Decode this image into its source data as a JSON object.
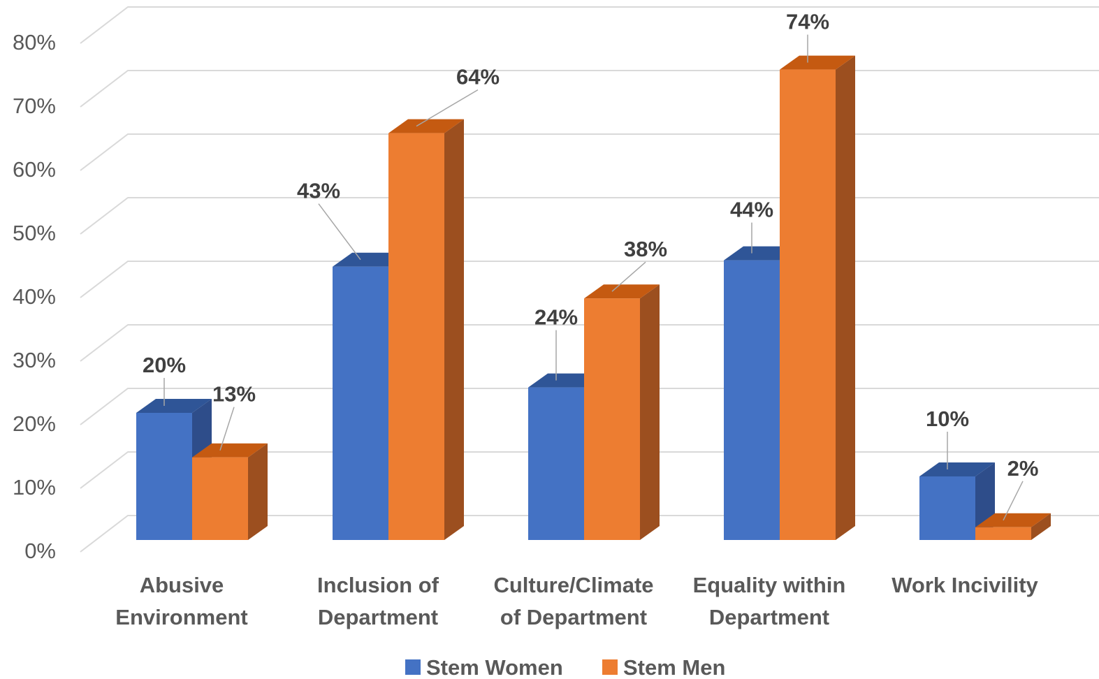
{
  "chart_data": {
    "type": "bar",
    "style": "3d-clustered-column",
    "title": "",
    "xlabel": "",
    "ylabel": "",
    "ylim": [
      0,
      0.8
    ],
    "y_tick_values": [
      0,
      0.1,
      0.2,
      0.3,
      0.4,
      0.5,
      0.6,
      0.7,
      0.8
    ],
    "y_tick_labels": [
      "0%",
      "10%",
      "20%",
      "30%",
      "40%",
      "50%",
      "60%",
      "70%",
      "80%"
    ],
    "grid": true,
    "legend_position": "bottom",
    "categories": [
      [
        "Abusive",
        "Environment"
      ],
      [
        "Inclusion of",
        "Department"
      ],
      [
        "Culture/Climate",
        "of Department"
      ],
      [
        "Equality within",
        "Department"
      ],
      [
        "Work Incivility"
      ]
    ],
    "series": [
      {
        "name": "Stem Women",
        "color": "#4472C4",
        "top_color": "#2F5597",
        "side_color": "#2E4D8A",
        "values": [
          0.2,
          0.43,
          0.24,
          0.44,
          0.1
        ],
        "labels": [
          "20%",
          "43%",
          "24%",
          "44%",
          "10%"
        ]
      },
      {
        "name": "Stem Men",
        "color": "#ED7D31",
        "top_color": "#C55A11",
        "side_color": "#9C4F1F",
        "values": [
          0.13,
          0.64,
          0.38,
          0.74,
          0.02
        ],
        "labels": [
          "13%",
          "64%",
          "38%",
          "74%",
          "2%"
        ]
      }
    ]
  }
}
